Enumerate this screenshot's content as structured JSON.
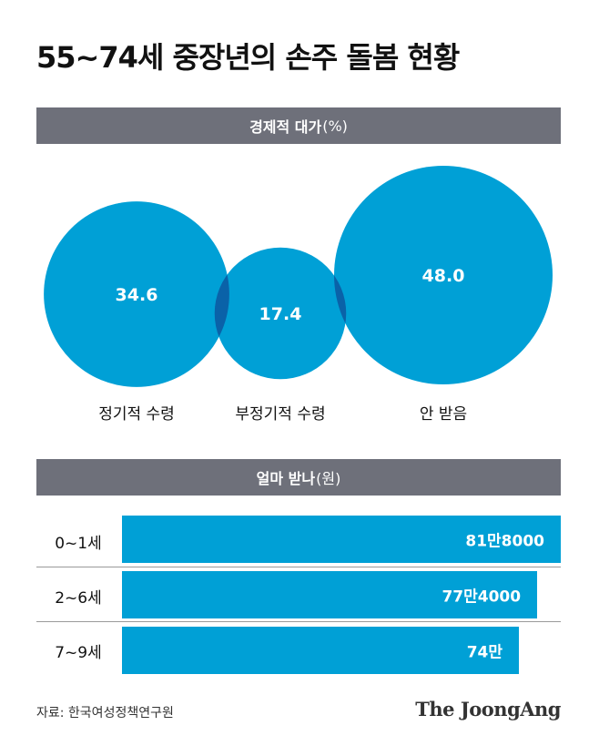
{
  "title": "55~74세 중장년의 손주 돌봄 현황",
  "section1": {
    "label": "경제적 대가",
    "unit": "(%)"
  },
  "section2": {
    "label": "얼마 받나",
    "unit": "(원)"
  },
  "colors": {
    "bubble": "#00a0d6",
    "overlap": "#0a62a8",
    "bar": "#00a0d6",
    "header": "#6e707a"
  },
  "chart_data": [
    {
      "type": "bubble",
      "unit": "%",
      "categories": [
        "정기적 수령",
        "부정기적 수령",
        "안 받음"
      ],
      "values": [
        34.6,
        17.4,
        48.0
      ],
      "value_labels": [
        "34.6",
        "17.4",
        "48.0"
      ]
    },
    {
      "type": "bar",
      "orientation": "horizontal",
      "unit": "원",
      "categories": [
        "0~1세",
        "2~6세",
        "7~9세"
      ],
      "values": [
        818000,
        774000,
        740000
      ],
      "value_labels": [
        "81만8000",
        "77만4000",
        "74만"
      ]
    }
  ],
  "source": "자료: 한국여성정책연구원",
  "logo": "The JoongAng"
}
